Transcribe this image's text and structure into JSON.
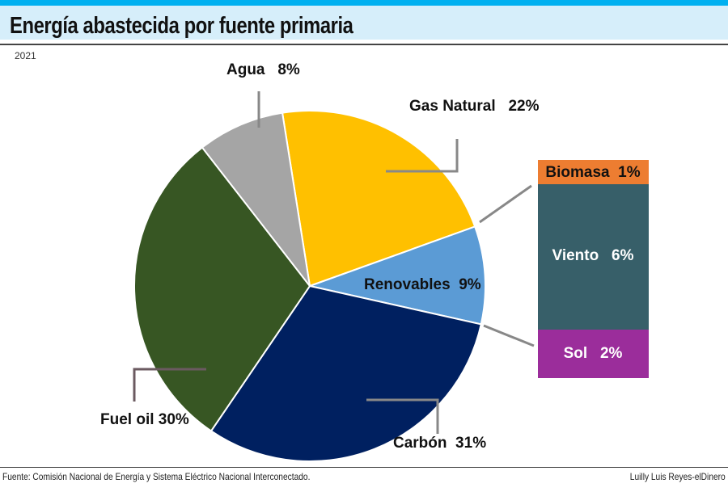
{
  "header": {
    "title": "Energía abastecida por fuente primaria",
    "year": "2021"
  },
  "footer": {
    "source": "Fuente: Comisión Nacional de Energía y Sistema Eléctrico Nacional Interconectado.",
    "credit": "Luilly Luis Reyes-elDinero"
  },
  "chart_data": {
    "type": "pie",
    "title": "Energía abastecida por fuente primaria",
    "subtitle": "2021",
    "slices": [
      {
        "name": "Gas Natural",
        "value": 22,
        "label": "Gas Natural   22%",
        "color": "#ffc000"
      },
      {
        "name": "Renovables",
        "value": 9,
        "label": "Renovables  9%",
        "color": "#5b9bd5"
      },
      {
        "name": "Carbón",
        "value": 31,
        "label": "Carbón  31%",
        "color": "#002060"
      },
      {
        "name": "Fuel oil",
        "value": 30,
        "label": "Fuel oil 30%",
        "color": "#375623"
      },
      {
        "name": "Agua",
        "value": 8,
        "label": "Agua   8%",
        "color": "#a5a5a5"
      }
    ],
    "breakdown": {
      "of": "Renovables",
      "items": [
        {
          "name": "Biomasa",
          "value": 1,
          "label": "Biomasa  1%",
          "color": "#ed7d31"
        },
        {
          "name": "Viento",
          "value": 6,
          "label": "Viento   6%",
          "color": "#375f69"
        },
        {
          "name": "Sol",
          "value": 2,
          "label": "Sol   2%",
          "color": "#9b2d9b"
        }
      ]
    }
  }
}
